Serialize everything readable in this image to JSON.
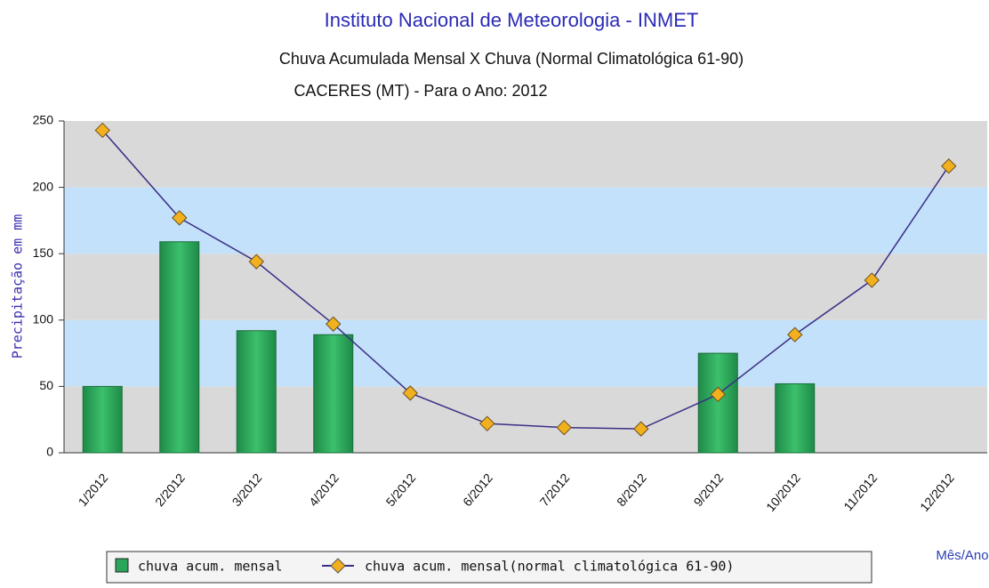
{
  "chart_data": {
    "type": "bar_line",
    "title": "Instituto Nacional de Meteorologia - INMET",
    "subtitle": "Chuva Acumulada Mensal X Chuva (Normal Climatológica 61-90)",
    "subtitle2": "CACERES (MT) - Para o Ano: 2012",
    "y_label": "Precipitação em mm",
    "x_label": "Mês/Ano",
    "categories": [
      "1/2012",
      "2/2012",
      "3/2012",
      "4/2012",
      "5/2012",
      "6/2012",
      "7/2012",
      "8/2012",
      "9/2012",
      "10/2012",
      "11/2012",
      "12/2012"
    ],
    "series": [
      {
        "name": "chuva acum. mensal",
        "type": "bar",
        "color": "#2aa55a",
        "values": [
          50,
          159,
          92,
          89,
          null,
          null,
          null,
          null,
          75,
          52,
          null,
          null
        ]
      },
      {
        "name": "chuva acum. mensal(normal climatológica 61-90)",
        "type": "line",
        "color": "#3b2f86",
        "marker_color": "#f2b01e",
        "values": [
          243,
          177,
          144,
          97,
          45,
          22,
          19,
          18,
          44,
          89,
          130,
          216
        ]
      }
    ],
    "ylim": [
      0,
      250
    ],
    "yticks": [
      0,
      50,
      100,
      150,
      200,
      250
    ],
    "band_colors": [
      "#d9d9d9",
      "#c3e1fa"
    ]
  }
}
